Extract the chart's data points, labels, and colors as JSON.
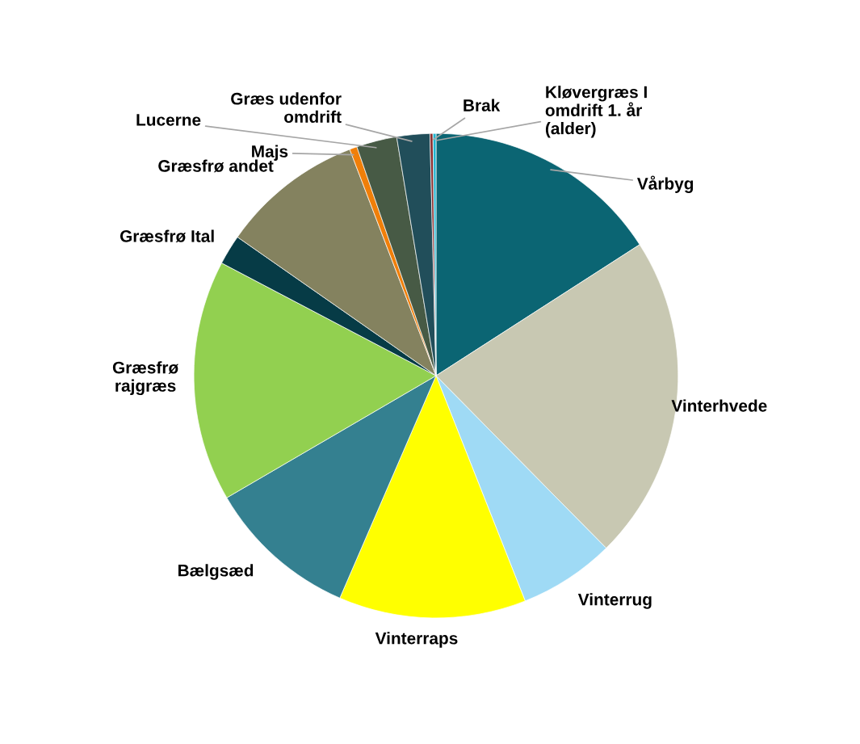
{
  "chart_data": {
    "type": "pie",
    "categories": [
      "Vårbyg",
      "Vinterhvede",
      "Vinterrug",
      "Vinterraps",
      "Bælgsæd",
      "Græsfrø\nrajgræs",
      "Græsfrø Ital",
      "Græsfrø andet",
      "Majs",
      "Lucerne",
      "Græs udenfor\nomdrift",
      "Brak",
      "Kløvergræs I\nomdrift 1. år\n(alder)"
    ],
    "values": [
      15.9,
      21.7,
      6.4,
      12.5,
      10.1,
      16.1,
      2.0,
      9.5,
      0.5,
      2.7,
      2.2,
      0.2,
      0.2
    ],
    "colors": [
      "#0b6573",
      "#c8c8b2",
      "#9fdaf5",
      "#ffff00",
      "#348090",
      "#92d050",
      "#063b46",
      "#84825f",
      "#f07f09",
      "#475a45",
      "#214e5a",
      "#8b2e2e",
      "#1fb5d0"
    ]
  }
}
